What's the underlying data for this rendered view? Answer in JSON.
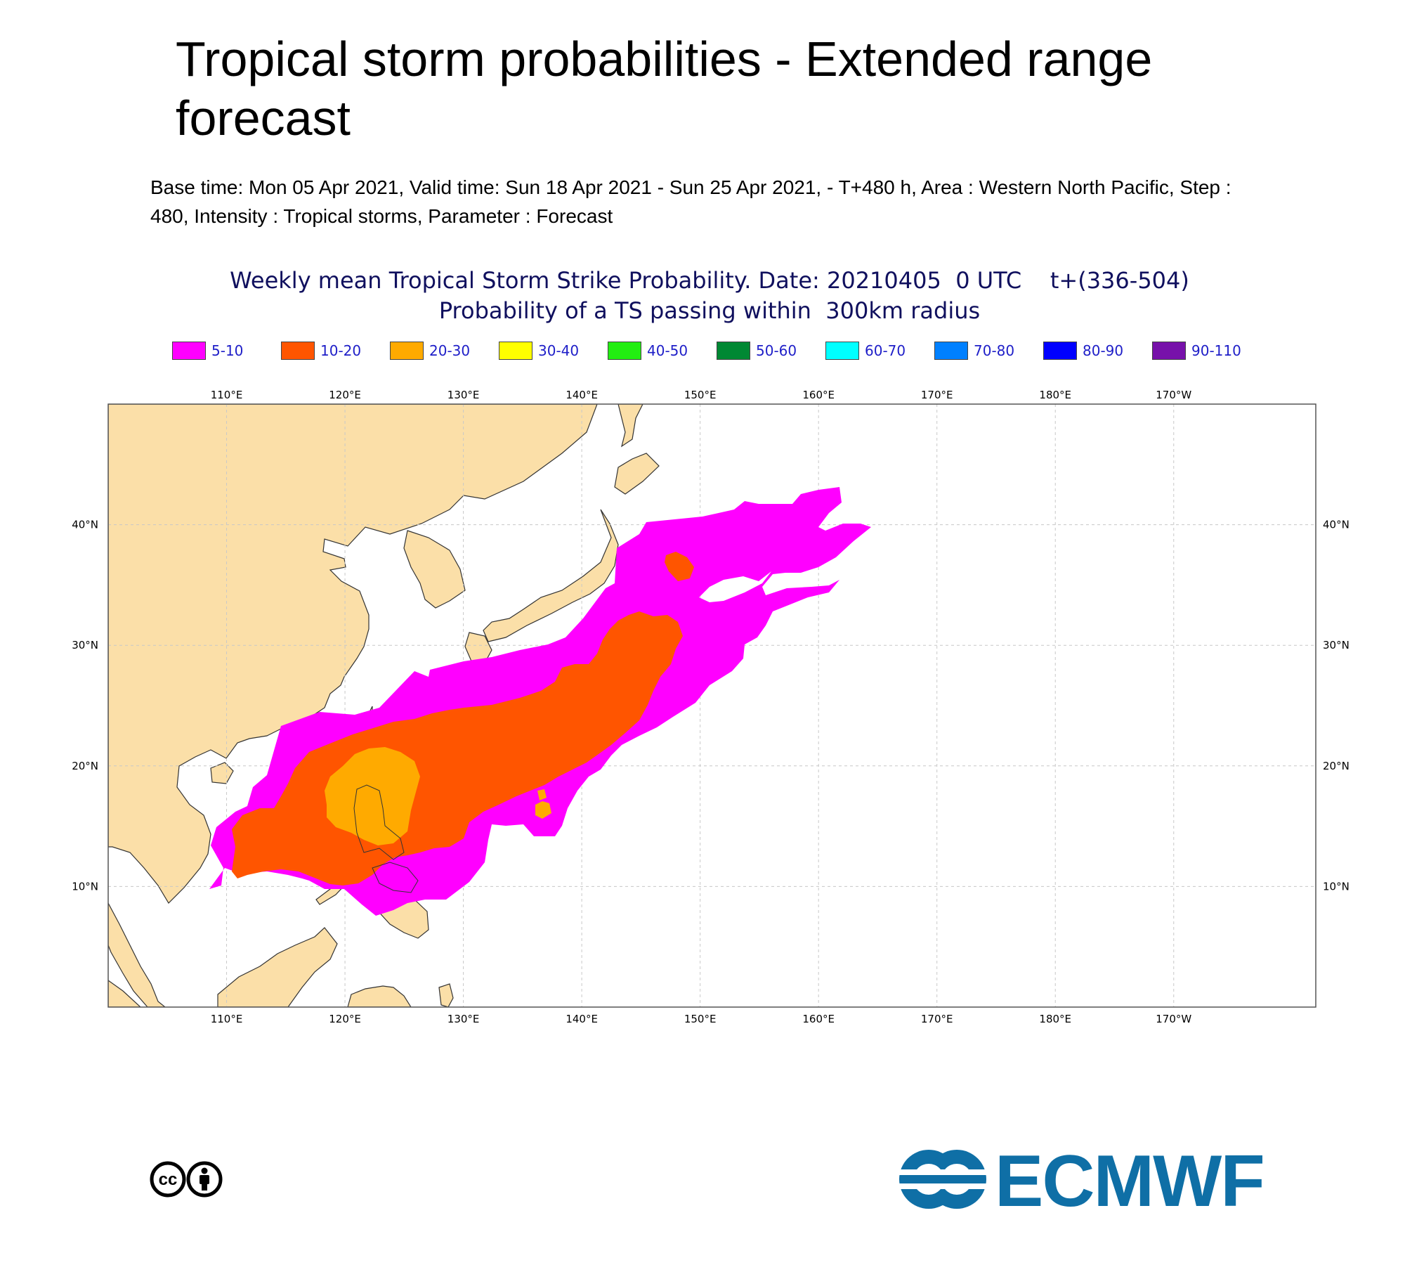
{
  "header": {
    "title": "Tropical storm probabilities - Extended range forecast",
    "subtitle": "Base time: Mon 05 Apr 2021, Valid time: Sun 18 Apr 2021 - Sun 25 Apr 2021, - T+480 h, Area : Western North Pacific, Step : 480, Intensity : Tropical storms, Parameter : Forecast"
  },
  "map_title": {
    "line1": "Weekly mean Tropical Storm Strike Probability. Date: 20210405  0 UTC    t+(336-504)",
    "line2": "Probability of a TS passing within  300km radius"
  },
  "legend": [
    {
      "label": "5-10",
      "color": "#ff00ff"
    },
    {
      "label": "10-20",
      "color": "#ff5500"
    },
    {
      "label": "20-30",
      "color": "#ffaa00"
    },
    {
      "label": "30-40",
      "color": "#ffff00"
    },
    {
      "label": "40-50",
      "color": "#22ee11"
    },
    {
      "label": "50-60",
      "color": "#008833"
    },
    {
      "label": "60-70",
      "color": "#00ffff"
    },
    {
      "label": "70-80",
      "color": "#0080ff"
    },
    {
      "label": "80-90",
      "color": "#0000ff"
    },
    {
      "label": "90-110",
      "color": "#7711aa"
    }
  ],
  "map": {
    "region": "Western North Pacific",
    "lon_range": [
      100,
      202
    ],
    "lat_range": [
      0,
      50
    ],
    "lon_ticks": [
      "110°E",
      "120°E",
      "130°E",
      "140°E",
      "150°E",
      "160°E",
      "170°E",
      "180°E",
      "170°W"
    ],
    "lat_ticks": [
      "10°N",
      "20°N",
      "30°N",
      "40°N"
    ],
    "land_color": "#fbdfa8",
    "grid": true
  },
  "footer": {
    "cc_label": "cc",
    "brand": "ECMWF",
    "brand_color": "#0f6fa6"
  }
}
